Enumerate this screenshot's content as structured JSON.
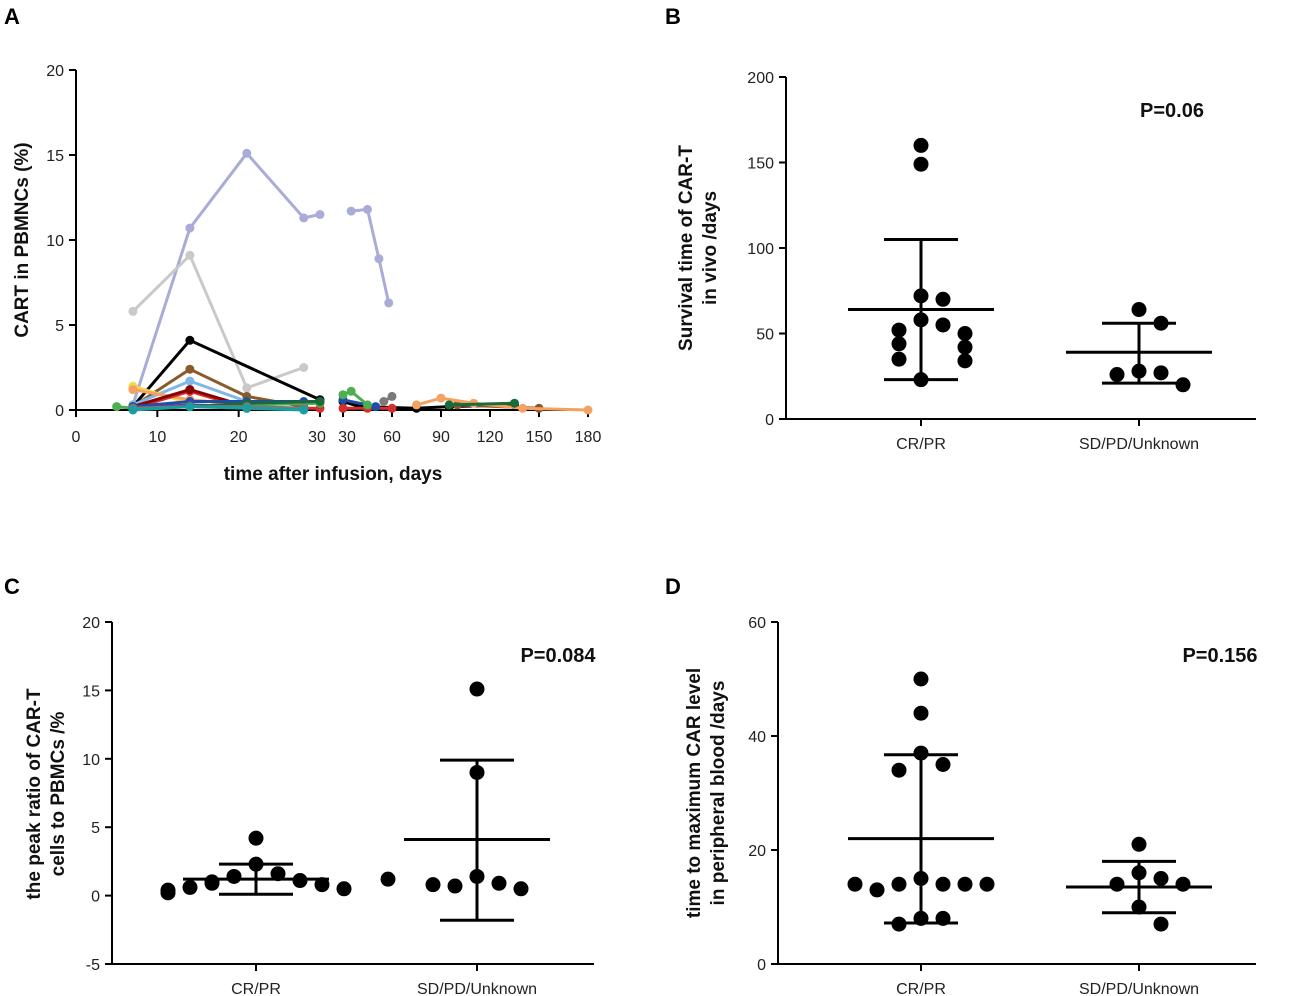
{
  "panels": {
    "A": {
      "letter": "A",
      "chart_data": {
        "type": "line",
        "title": "",
        "xlabel": "time after infusion, days",
        "ylabel": "CART in PBMNCs (%)",
        "ylim": [
          0,
          20
        ],
        "yticks": [
          0,
          5,
          10,
          15,
          20
        ],
        "x_segment1": {
          "range": [
            0,
            30
          ],
          "ticks": [
            0,
            10,
            20,
            30
          ]
        },
        "x_segment2": {
          "range": [
            30,
            180
          ],
          "ticks": [
            30,
            60,
            90,
            120,
            150,
            180
          ]
        },
        "series": [
          {
            "name": "lavender",
            "color": "#a9acd8",
            "x": [
              7,
              14,
              21,
              28,
              30
            ],
            "y": [
              0.3,
              10.7,
              15.1,
              11.3,
              11.5
            ],
            "x2": [
              35,
              45,
              52,
              58
            ],
            "y2": [
              11.7,
              11.8,
              8.9,
              6.3
            ]
          },
          {
            "name": "light-gray",
            "color": "#c9c9c9",
            "x": [
              7,
              14,
              21,
              28
            ],
            "y": [
              5.8,
              9.1,
              1.3,
              2.5
            ],
            "x2": [],
            "y2": []
          },
          {
            "name": "black",
            "color": "#000000",
            "x": [
              7,
              14,
              30
            ],
            "y": [
              0.2,
              4.1,
              0.6
            ],
            "x2": [
              30,
              40,
              75,
              95,
              135
            ],
            "y2": [
              0.5,
              0.2,
              0.1,
              0.2,
              0.3
            ]
          },
          {
            "name": "brown",
            "color": "#8b5a2b",
            "x": [
              7,
              14,
              21,
              28
            ],
            "y": [
              0.2,
              2.4,
              0.8,
              0.2
            ],
            "x2": [
              100,
              150
            ],
            "y2": [
              0.3,
              0.1
            ]
          },
          {
            "name": "light-blue",
            "color": "#7fb7e6",
            "x": [
              7,
              14,
              21
            ],
            "y": [
              0.3,
              1.7,
              0.5
            ],
            "x2": [],
            "y2": []
          },
          {
            "name": "yellow",
            "color": "#f5d94a",
            "x": [
              7,
              14
            ],
            "y": [
              1.4,
              0.4
            ],
            "x2": [],
            "y2": []
          },
          {
            "name": "orange",
            "color": "#f4a261",
            "x": [
              7,
              14,
              21
            ],
            "y": [
              1.2,
              0.6,
              0.3
            ],
            "x2": [
              75,
              90,
              110,
              140,
              180
            ],
            "y2": [
              0.3,
              0.7,
              0.4,
              0.1,
              0.0
            ]
          },
          {
            "name": "red",
            "color": "#d32f2f",
            "x": [
              7,
              14,
              21,
              28,
              30
            ],
            "y": [
              0.1,
              1.1,
              0.1,
              0.1,
              0.1
            ],
            "x2": [
              30,
              45,
              60
            ],
            "y2": [
              0.1,
              0.1,
              0.1
            ]
          },
          {
            "name": "dark-red",
            "color": "#8b0000",
            "x": [
              7,
              14,
              21
            ],
            "y": [
              0.2,
              1.2,
              0.2
            ],
            "x2": [],
            "y2": []
          },
          {
            "name": "blue",
            "color": "#1e4fa8",
            "x": [
              7,
              14,
              21,
              28,
              30
            ],
            "y": [
              0.2,
              0.5,
              0.5,
              0.5,
              0.5
            ],
            "x2": [
              30,
              50
            ],
            "y2": [
              0.6,
              0.2
            ]
          },
          {
            "name": "green",
            "color": "#4caf50",
            "x": [
              5,
              7,
              14,
              21,
              30
            ],
            "y": [
              0.2,
              0.1,
              0.2,
              0.3,
              0.4
            ],
            "x2": [
              30,
              35,
              45
            ],
            "y2": [
              0.9,
              1.1,
              0.3
            ]
          },
          {
            "name": "purple",
            "color": "#6a3d9a",
            "x": [
              7,
              14,
              21,
              28
            ],
            "y": [
              0.1,
              0.3,
              0.2,
              0.1
            ],
            "x2": [],
            "y2": []
          },
          {
            "name": "dark-green",
            "color": "#1b6b3a",
            "x": [
              7,
              14,
              21,
              30
            ],
            "y": [
              0.1,
              0.2,
              0.4,
              0.5
            ],
            "x2": [
              95,
              135
            ],
            "y2": [
              0.3,
              0.4
            ]
          },
          {
            "name": "gray",
            "color": "#7a7a7a",
            "x": [
              7,
              14,
              21,
              28
            ],
            "y": [
              0.1,
              0.2,
              0.2,
              0.1
            ],
            "x2": [
              55,
              60
            ],
            "y2": [
              0.5,
              0.8
            ]
          },
          {
            "name": "teal",
            "color": "#1a9e9e",
            "x": [
              7,
              14,
              21,
              28
            ],
            "y": [
              0.0,
              0.2,
              0.1,
              0.0
            ],
            "x2": [],
            "y2": []
          }
        ]
      }
    },
    "B": {
      "letter": "B",
      "pvalue": "P=0.06",
      "chart_data": {
        "type": "scatter",
        "ylabel_line1": "Survival time of CAR-T",
        "ylabel_line2": "in vivo /days",
        "ylim": [
          0,
          200
        ],
        "yticks": [
          0,
          50,
          100,
          150,
          200
        ],
        "categories": [
          "CR/PR",
          "SD/PD/Unknown"
        ],
        "points": [
          [
            160,
            149,
            72,
            70,
            58,
            55,
            52,
            50,
            44,
            42,
            35,
            34,
            23
          ],
          [
            64,
            56,
            28,
            27,
            26,
            20
          ]
        ],
        "mean": [
          64,
          39
        ],
        "sd_upper": [
          105,
          56
        ],
        "sd_lower": [
          23,
          21
        ]
      }
    },
    "C": {
      "letter": "C",
      "pvalue": "P=0.084",
      "chart_data": {
        "type": "scatter",
        "ylabel_line1": "the peak ratio of CAR-T",
        "ylabel_line2": "cells to PBMCs /%",
        "ylim": [
          -5,
          20
        ],
        "yticks": [
          -5,
          0,
          5,
          10,
          15,
          20
        ],
        "categories": [
          "CR/PR",
          "SD/PD/Unknown"
        ],
        "points": [
          [
            4.2,
            2.3,
            1.6,
            1.4,
            1.1,
            1.0,
            0.9,
            0.8,
            0.6,
            0.5,
            0.4,
            0.2,
            1.2
          ],
          [
            15.1,
            9.0,
            1.4,
            0.9,
            0.7,
            0.5,
            0.8
          ]
        ],
        "mean": [
          1.2,
          4.1
        ],
        "sd_upper": [
          2.3,
          9.9
        ],
        "sd_lower": [
          0.1,
          -1.8
        ]
      }
    },
    "D": {
      "letter": "D",
      "pvalue": "P=0.156",
      "chart_data": {
        "type": "scatter",
        "ylabel_line1": "time to maximum CAR level",
        "ylabel_line2": "in peripheral blood /days",
        "ylim": [
          0,
          60
        ],
        "yticks": [
          0,
          20,
          40,
          60
        ],
        "categories": [
          "CR/PR",
          "SD/PD/Unknown"
        ],
        "points": [
          [
            50,
            44,
            37,
            35,
            34,
            15,
            14,
            14,
            14,
            13,
            14,
            14,
            8,
            8,
            7
          ],
          [
            21,
            16,
            15,
            14,
            14,
            10,
            7
          ]
        ],
        "mean": [
          22,
          13.5
        ],
        "sd_upper": [
          36.7,
          18
        ],
        "sd_lower": [
          7.2,
          9
        ]
      }
    }
  }
}
